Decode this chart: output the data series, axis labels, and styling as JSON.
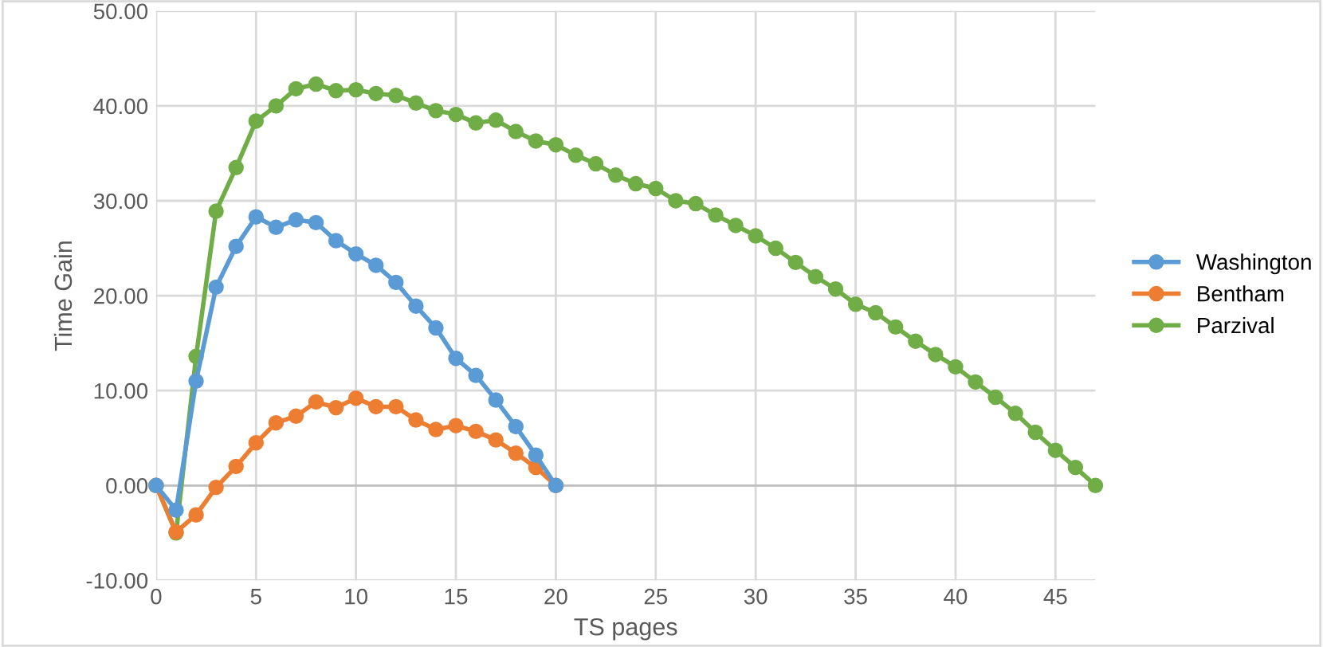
{
  "chart_data": {
    "type": "line",
    "xlabel": "TS pages",
    "ylabel": "Time Gain",
    "xlim": [
      0,
      47
    ],
    "xticks": [
      0,
      5,
      10,
      15,
      20,
      25,
      30,
      35,
      40,
      45
    ],
    "ylim": [
      -10,
      50
    ],
    "yticks": [
      {
        "value": -10,
        "label": "-10.00"
      },
      {
        "value": 0,
        "label": "0.00"
      },
      {
        "value": 10,
        "label": "10.00"
      },
      {
        "value": 20,
        "label": "20.00"
      },
      {
        "value": 30,
        "label": "30.00"
      },
      {
        "value": 40,
        "label": "40.00"
      },
      {
        "value": 50,
        "label": "50.00"
      }
    ],
    "grid": true,
    "legend": "right",
    "marker": "circle",
    "line_style": "solid",
    "series": [
      {
        "name": "Washington",
        "color": "#5b9bd5",
        "x": [
          0,
          1,
          2,
          3,
          4,
          5,
          6,
          7,
          8,
          9,
          10,
          11,
          12,
          13,
          14,
          15,
          16,
          17,
          18,
          19,
          20
        ],
        "values": [
          0,
          -2.6,
          11.0,
          20.9,
          25.2,
          28.3,
          27.2,
          28.0,
          27.7,
          25.8,
          24.4,
          23.2,
          21.4,
          18.9,
          16.6,
          13.4,
          11.6,
          9.0,
          6.2,
          3.2,
          0
        ]
      },
      {
        "name": "Bentham",
        "color": "#ed7d31",
        "x": [
          0,
          1,
          2,
          3,
          4,
          5,
          6,
          7,
          8,
          9,
          10,
          11,
          12,
          13,
          14,
          15,
          16,
          17,
          18,
          19,
          20
        ],
        "values": [
          0,
          -4.9,
          -3.1,
          -0.2,
          2.0,
          4.5,
          6.6,
          7.3,
          8.8,
          8.2,
          9.2,
          8.3,
          8.3,
          6.9,
          5.9,
          6.3,
          5.7,
          4.8,
          3.4,
          1.9,
          0
        ]
      },
      {
        "name": "Parzival",
        "color": "#70ad47",
        "x": [
          0,
          1,
          2,
          3,
          4,
          5,
          6,
          7,
          8,
          9,
          10,
          11,
          12,
          13,
          14,
          15,
          16,
          17,
          18,
          19,
          20,
          21,
          22,
          23,
          24,
          25,
          26,
          27,
          28,
          29,
          30,
          31,
          32,
          33,
          34,
          35,
          36,
          37,
          38,
          39,
          40,
          41,
          42,
          43,
          44,
          45,
          46,
          47
        ],
        "values": [
          0,
          -5.0,
          13.6,
          28.9,
          33.5,
          38.4,
          40.0,
          41.8,
          42.3,
          41.6,
          41.7,
          41.3,
          41.1,
          40.3,
          39.5,
          39.1,
          38.2,
          38.5,
          37.3,
          36.3,
          35.9,
          34.8,
          33.9,
          32.7,
          31.8,
          31.3,
          30.0,
          29.7,
          28.5,
          27.4,
          26.3,
          25.0,
          23.5,
          22.0,
          20.7,
          19.1,
          18.2,
          16.7,
          15.2,
          13.8,
          12.5,
          10.9,
          9.3,
          7.6,
          5.6,
          3.7,
          1.9,
          0
        ]
      }
    ]
  }
}
